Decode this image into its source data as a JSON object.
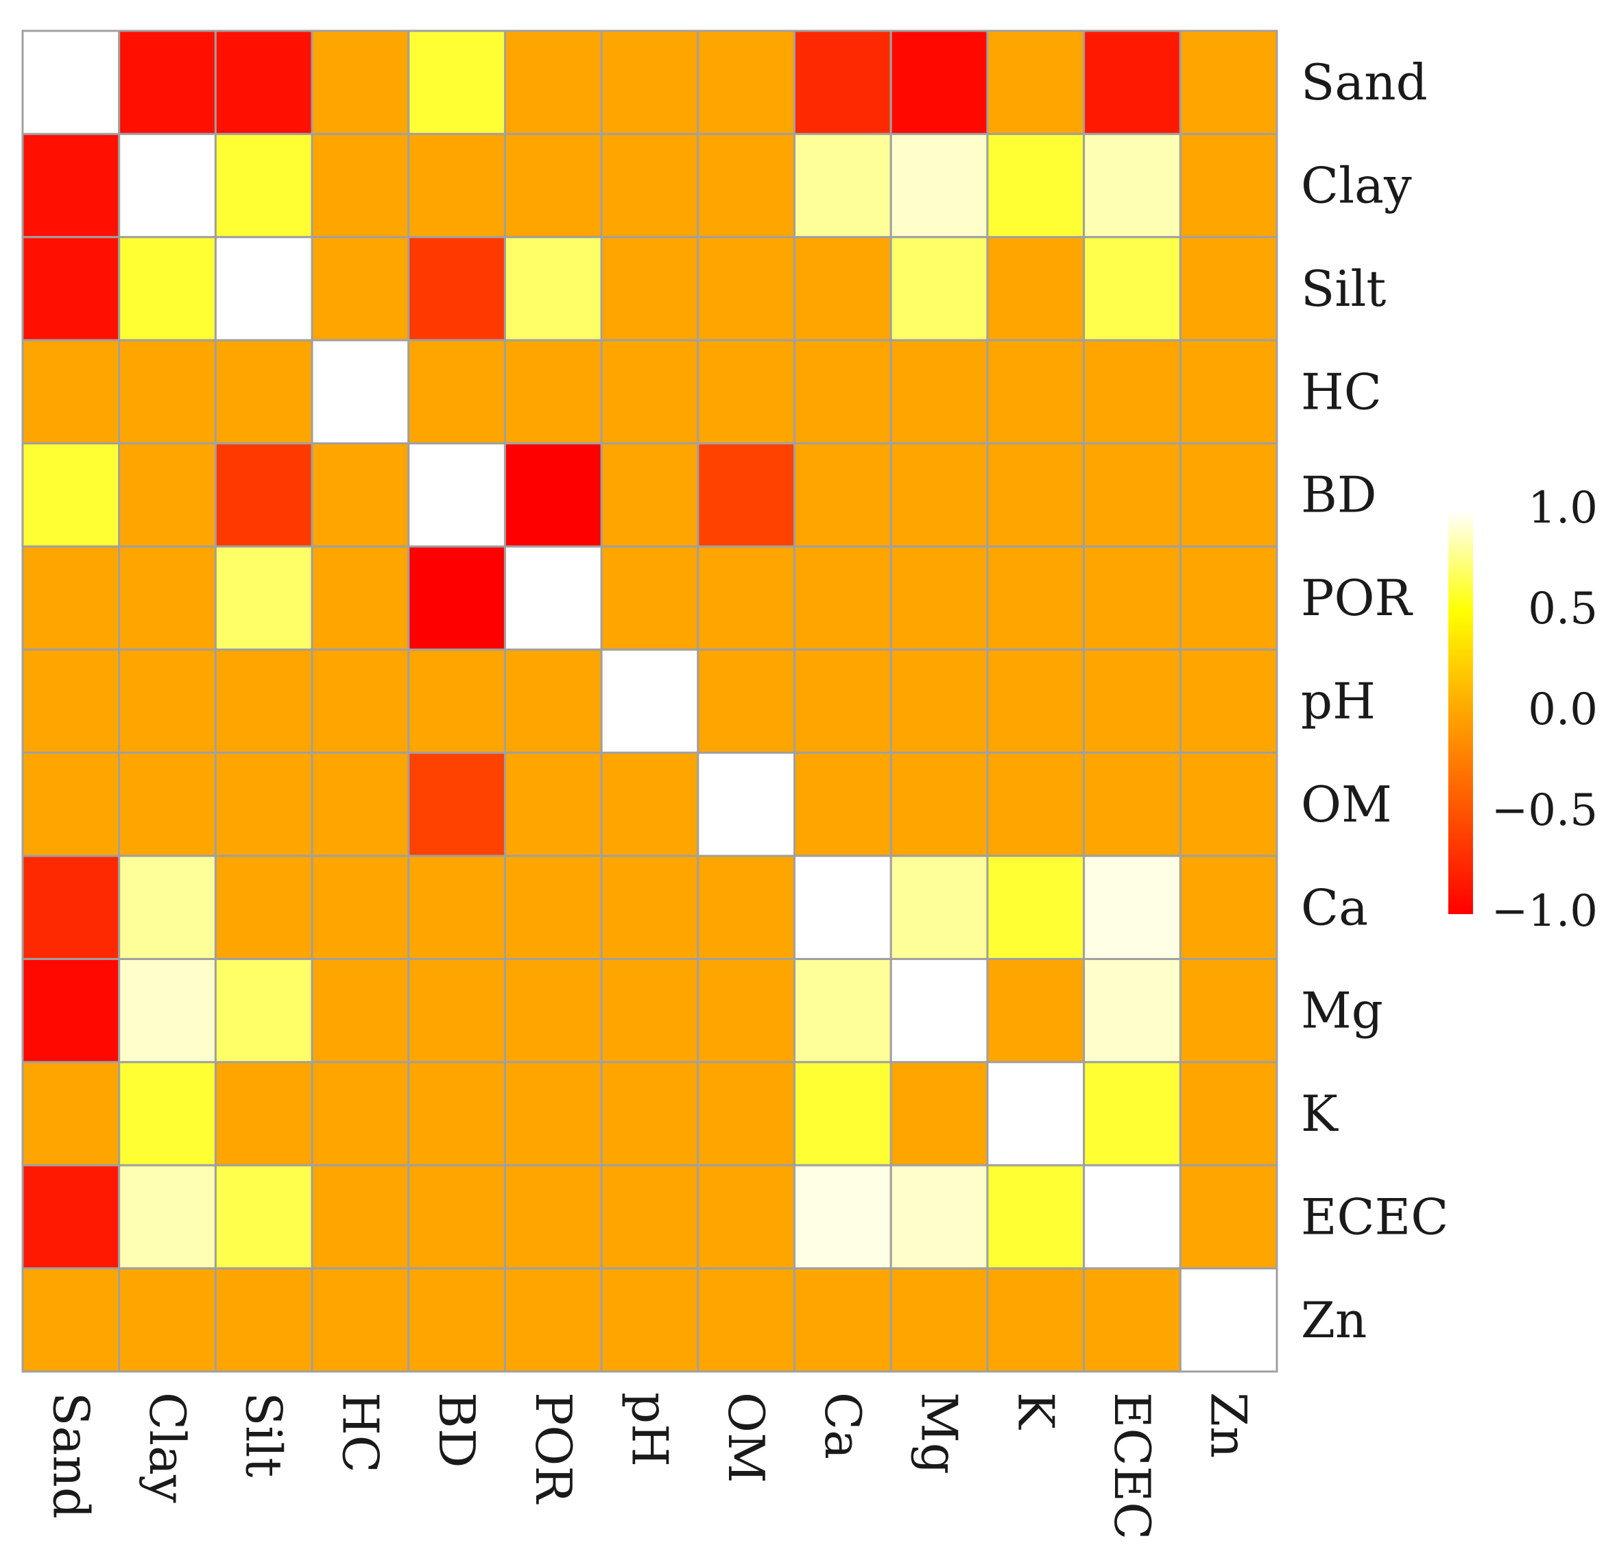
{
  "chart_data": {
    "type": "heatmap",
    "title": "",
    "variables": [
      "Sand",
      "Clay",
      "Silt",
      "HC",
      "BD",
      "POR",
      "pH",
      "OM",
      "Ca",
      "Mg",
      "K",
      "ECEC",
      "Zn"
    ],
    "matrix": [
      [
        1.0,
        -0.9,
        -0.9,
        0,
        0.6,
        0,
        0,
        0,
        -0.75,
        -0.95,
        0,
        -0.85,
        0
      ],
      [
        -0.9,
        1.0,
        0.6,
        0,
        0,
        0,
        0,
        0,
        0.8,
        0.9,
        0.6,
        0.85,
        0
      ],
      [
        -0.9,
        0.6,
        1.0,
        0,
        -0.65,
        0.7,
        0,
        0,
        0,
        0.7,
        0,
        0.65,
        0
      ],
      [
        0,
        0,
        0,
        1.0,
        0,
        0,
        0,
        0,
        0,
        0,
        0,
        0,
        0
      ],
      [
        0.6,
        0,
        -0.65,
        0,
        1.0,
        -1.0,
        0,
        -0.6,
        0,
        0,
        0,
        0,
        0
      ],
      [
        0,
        0,
        0.7,
        0,
        -1.0,
        1.0,
        0,
        0,
        0,
        0,
        0,
        0,
        0
      ],
      [
        0,
        0,
        0,
        0,
        0,
        0,
        1.0,
        0,
        0,
        0,
        0,
        0,
        0
      ],
      [
        0,
        0,
        0,
        0,
        -0.6,
        0,
        0,
        1.0,
        0,
        0,
        0,
        0,
        0
      ],
      [
        -0.75,
        0.8,
        0,
        0,
        0,
        0,
        0,
        0,
        1.0,
        0.8,
        0.6,
        0.95,
        0
      ],
      [
        -0.95,
        0.9,
        0.7,
        0,
        0,
        0,
        0,
        0,
        0.8,
        1.0,
        0,
        0.9,
        0
      ],
      [
        0,
        0.6,
        0,
        0,
        0,
        0,
        0,
        0,
        0.6,
        0,
        1.0,
        0.6,
        0
      ],
      [
        -0.85,
        0.85,
        0.65,
        0,
        0,
        0,
        0,
        0,
        0.95,
        0.9,
        0.6,
        1.0,
        0
      ],
      [
        0,
        0,
        0,
        0,
        0,
        0,
        0,
        0,
        0,
        0,
        0,
        0,
        1.0
      ]
    ],
    "colorbar": {
      "min": -1.0,
      "max": 1.0,
      "ticks": [
        1.0,
        0.5,
        0.0,
        -0.5,
        -1.0
      ],
      "tick_labels": [
        "1.0",
        "0.5",
        "0.0",
        "−0.5",
        "−1.0"
      ],
      "stops": [
        "#ff0000",
        "#ffa500",
        "#ffff00",
        "#ffffff"
      ]
    },
    "grid_color": "#a0a0a0",
    "row_labels_side": "right",
    "col_labels_side": "bottom",
    "col_label_rotation": "90deg"
  }
}
